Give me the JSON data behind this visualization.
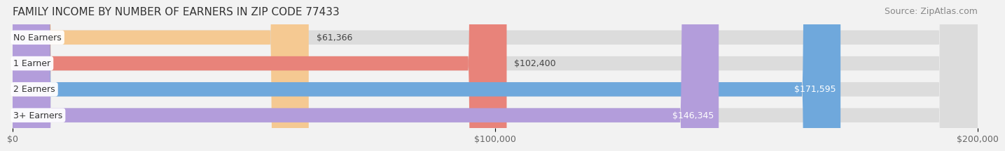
{
  "title": "FAMILY INCOME BY NUMBER OF EARNERS IN ZIP CODE 77433",
  "source": "Source: ZipAtlas.com",
  "categories": [
    "No Earners",
    "1 Earner",
    "2 Earners",
    "3+ Earners"
  ],
  "values": [
    61366,
    102400,
    171595,
    146345
  ],
  "bar_colors": [
    "#f5c992",
    "#e8837a",
    "#6fa8dc",
    "#b39ddb"
  ],
  "value_labels": [
    "$61,366",
    "$102,400",
    "$171,595",
    "$146,345"
  ],
  "xlim": [
    0,
    200000
  ],
  "xticks": [
    0,
    100000,
    200000
  ],
  "xtick_labels": [
    "$0",
    "$100,000",
    "$200,000"
  ],
  "background_color": "#f0f0f0",
  "bar_bg_color": "#e8e8e8",
  "title_fontsize": 11,
  "source_fontsize": 9,
  "label_fontsize": 9,
  "value_fontsize": 9,
  "tick_fontsize": 9,
  "bar_height": 0.55,
  "fig_bg_color": "#f2f2f2"
}
